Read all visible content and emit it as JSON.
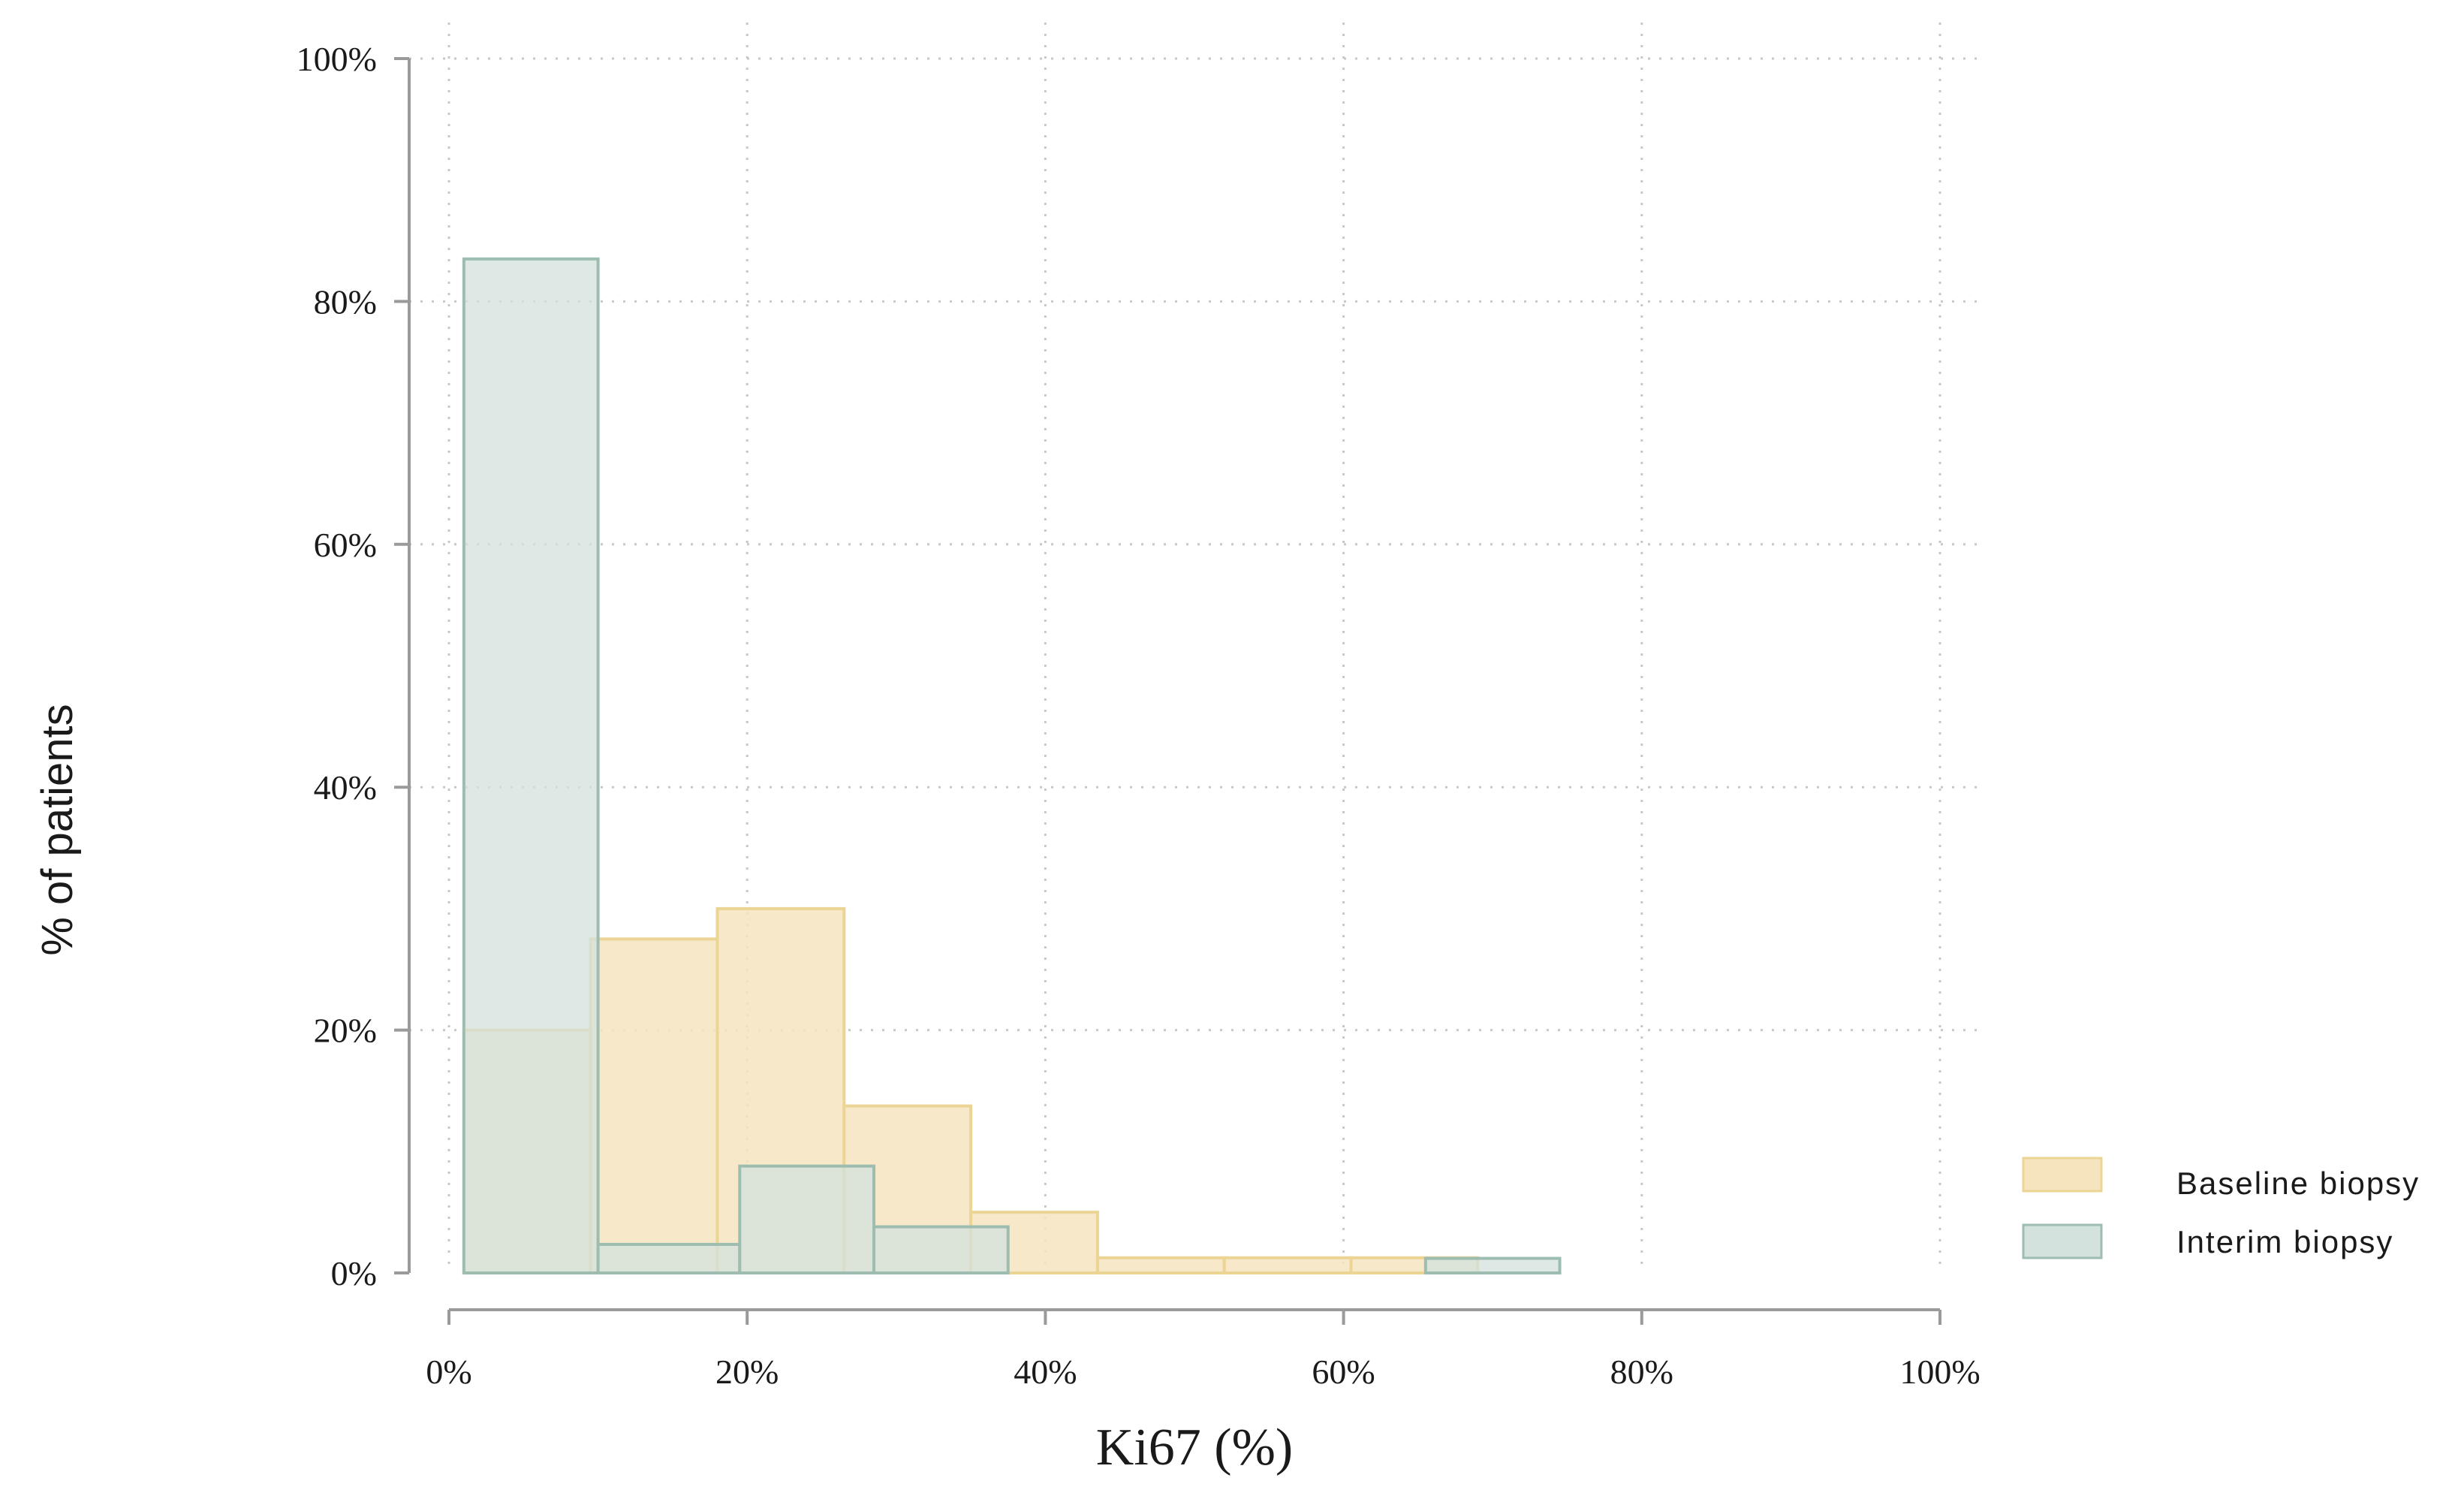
{
  "chart_data": {
    "type": "bar",
    "subtype": "overlaid-histogram",
    "xlabel": "Ki67 (%)",
    "ylabel": "% of patients",
    "xlim": [
      0,
      100
    ],
    "ylim": [
      0,
      100
    ],
    "x_ticks": [
      "0%",
      "20%",
      "40%",
      "60%",
      "80%",
      "100%"
    ],
    "y_ticks": [
      "0%",
      "20%",
      "40%",
      "60%",
      "80%",
      "100%"
    ],
    "grid": "dotted",
    "legend_position": "bottom-right",
    "series": [
      {
        "name": "Baseline biopsy",
        "color": "#f6e4bf",
        "stroke": "#ecd495",
        "bins": [
          {
            "x0": 1,
            "x1": 9.5,
            "value": 20
          },
          {
            "x0": 9.5,
            "x1": 18,
            "value": 27.5
          },
          {
            "x0": 18,
            "x1": 26.5,
            "value": 30
          },
          {
            "x0": 26.5,
            "x1": 35,
            "value": 13.75
          },
          {
            "x0": 35,
            "x1": 43.5,
            "value": 5
          },
          {
            "x0": 43.5,
            "x1": 52,
            "value": 1.25
          },
          {
            "x0": 52,
            "x1": 60.5,
            "value": 1.25
          },
          {
            "x0": 60.5,
            "x1": 69,
            "value": 1.25
          }
        ]
      },
      {
        "name": "Interim biopsy",
        "color": "#d3e2dc",
        "stroke": "#9ebdb1",
        "bins": [
          {
            "x0": 1,
            "x1": 10,
            "value": 83.5
          },
          {
            "x0": 10,
            "x1": 19.5,
            "value": 2.35
          },
          {
            "x0": 19.5,
            "x1": 28.5,
            "value": 8.8
          },
          {
            "x0": 28.5,
            "x1": 37.5,
            "value": 3.8
          },
          {
            "x0": 65.5,
            "x1": 74.5,
            "value": 1.2
          }
        ]
      }
    ]
  }
}
